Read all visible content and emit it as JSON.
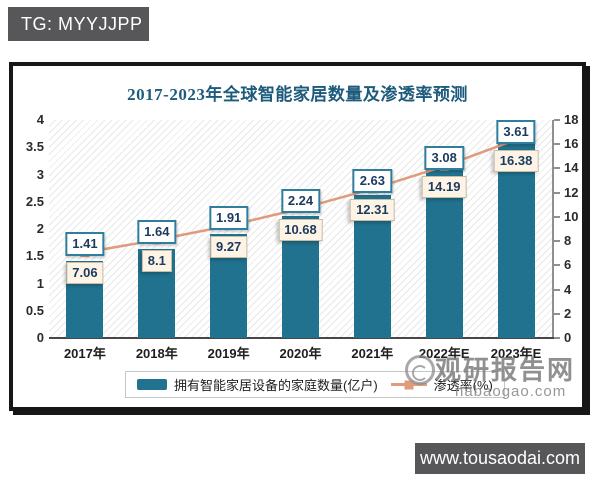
{
  "badge": {
    "text": "TG: MYYJJPP"
  },
  "chart_data": {
    "type": "combo",
    "title": "2017-2023年全球智能家居数量及渗透率预测",
    "categories": [
      "2017年",
      "2018年",
      "2019年",
      "2020年",
      "2021年",
      "2022年E",
      "2023年E"
    ],
    "series": [
      {
        "name": "拥有智能家居设备的家庭数量(亿户)",
        "type": "bar",
        "axis": "left",
        "color": "#20728f",
        "values": [
          1.41,
          1.64,
          1.91,
          2.24,
          2.63,
          3.08,
          3.61
        ],
        "label_style": "white-box-teal-border"
      },
      {
        "name": "渗透率(%)",
        "type": "line",
        "axis": "right",
        "color": "#e09b7d",
        "marker": "square",
        "values": [
          7.06,
          8.1,
          9.27,
          10.68,
          12.31,
          14.19,
          16.38
        ],
        "label_style": "cream-box"
      }
    ],
    "left_axis": {
      "min": 0,
      "max": 4,
      "ticks": [
        0,
        0.5,
        1,
        1.5,
        2,
        2.5,
        3,
        3.5,
        4
      ]
    },
    "right_axis": {
      "min": 0,
      "max": 18,
      "ticks": [
        0,
        2,
        4,
        6,
        8,
        10,
        12,
        14,
        16,
        18
      ]
    },
    "legend_position": "bottom",
    "plot_background": "diagonal-hatch",
    "grid": false
  },
  "watermark": {
    "site_name": "观研报告网",
    "domain": "nabaogao.com",
    "logo": "swirl-icon"
  },
  "footer": {
    "url": "www.tousaodai.com"
  }
}
